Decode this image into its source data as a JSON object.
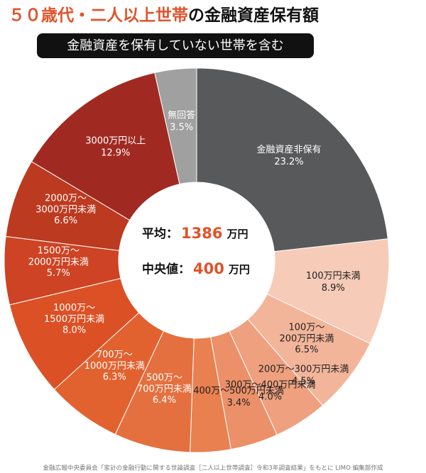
{
  "chart_data": {
    "type": "pie",
    "title": {
      "highlight": "５０歳代・二人以上世帯",
      "rest": "の金融資産保有額"
    },
    "subtitle": "金融資産を保有していない世帯を含む",
    "categories": [
      "金融資産非保有",
      "100万円未満",
      "100万～200万円未満",
      "200万～300万円未満",
      "300万～400万円未満",
      "400万～500万円未満",
      "500万～700万円未満",
      "700万～1000万円未満",
      "1000万～1500万円未満",
      "1500万～2000万円未満",
      "2000万～3000万円未満",
      "3000万円以上",
      "無回答"
    ],
    "values": [
      23.2,
      8.9,
      6.5,
      4.5,
      4.0,
      3.4,
      6.4,
      6.3,
      8.0,
      5.7,
      6.6,
      12.9,
      3.5
    ],
    "value_labels": [
      "23.2%",
      "8.9%",
      "6.5%",
      "4.5%",
      "4.0%",
      "3.4%",
      "6.4%",
      "6.3%",
      "8.0%",
      "5.7%",
      "6.6%",
      "12.9%",
      "3.5%"
    ],
    "colors": [
      "#58595b",
      "#f6cbb8",
      "#f3b59a",
      "#eea07f",
      "#eb9068",
      "#e8804f",
      "#e5703f",
      "#e2622f",
      "#dc5025",
      "#cd4323",
      "#bc3a20",
      "#a02a22",
      "#a0a0a0"
    ],
    "label_colors": [
      "#ffffff",
      "#222222",
      "#222222",
      "#222222",
      "#222222",
      "#222222",
      "#ffffff",
      "#ffffff",
      "#ffffff",
      "#ffffff",
      "#ffffff",
      "#ffffff",
      "#ffffff"
    ],
    "donut": true,
    "center": {
      "mean_label": "平均：",
      "mean_value": 1386,
      "mean_unit": "万円",
      "median_label": "中央値：",
      "median_value": 400,
      "median_unit": "万円"
    },
    "source": "金融広報中央委員会「家計の金融行動に関する世論調査［二人以上世帯調査］令和3年調査結果」をもとに LIMO 編集部作成"
  }
}
